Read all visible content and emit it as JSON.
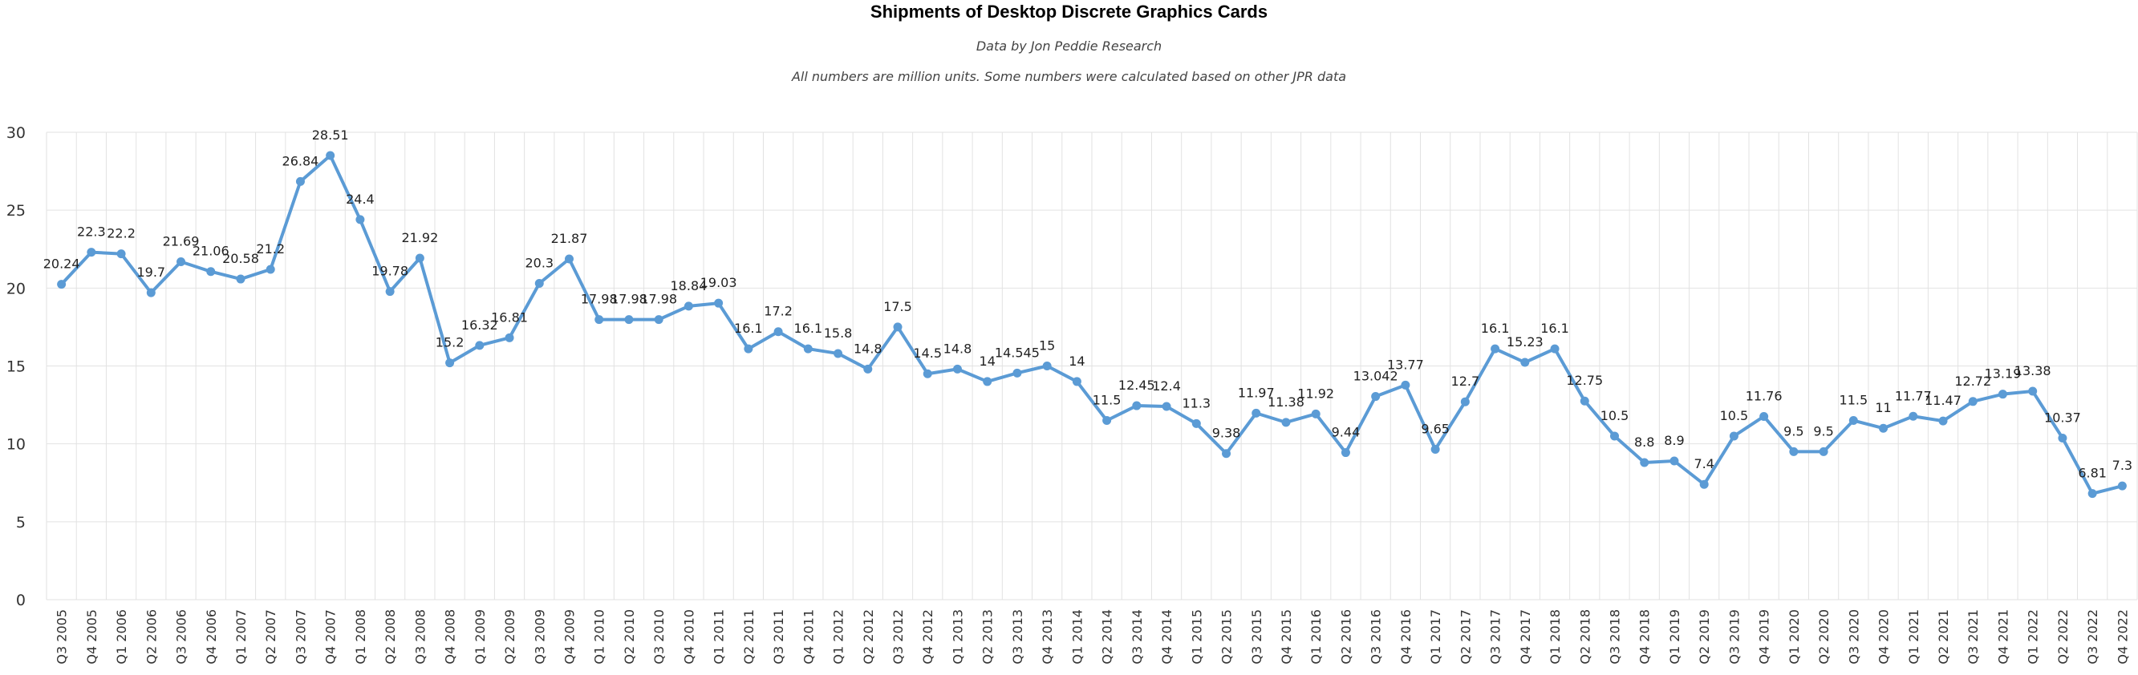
{
  "colors": {
    "line": "#5b9bd5",
    "grid": "#e2e2e2",
    "background": "#ffffff"
  },
  "chart_data": {
    "type": "line",
    "title": "Shipments of Desktop Discrete Graphics Cards",
    "subtitle": "Data by Jon Peddie Research",
    "note": "All numbers are million units. Some numbers were calculated based on other JPR data",
    "xlabel": "",
    "ylabel": "",
    "ylim": [
      0,
      30
    ],
    "yticks": [
      0,
      5,
      10,
      15,
      20,
      25,
      30
    ],
    "grid": true,
    "legend": "none",
    "categories": [
      "Q3 2005",
      "Q4 2005",
      "Q1 2006",
      "Q2 2006",
      "Q3 2006",
      "Q4 2006",
      "Q1 2007",
      "Q2 2007",
      "Q3 2007",
      "Q4 2007",
      "Q1 2008",
      "Q2 2008",
      "Q3 2008",
      "Q4 2008",
      "Q1 2009",
      "Q2 2009",
      "Q3 2009",
      "Q4 2009",
      "Q1 2010",
      "Q2 2010",
      "Q3 2010",
      "Q4 2010",
      "Q1 2011",
      "Q2 2011",
      "Q3 2011",
      "Q4 2011",
      "Q1 2012",
      "Q2 2012",
      "Q3 2012",
      "Q4 2012",
      "Q1 2013",
      "Q2 2013",
      "Q3 2013",
      "Q4 2013",
      "Q1 2014",
      "Q2 2014",
      "Q3 2014",
      "Q4 2014",
      "Q1 2015",
      "Q2 2015",
      "Q3 2015",
      "Q4 2015",
      "Q1 2016",
      "Q2 2016",
      "Q3 2016",
      "Q4 2016",
      "Q1 2017",
      "Q2 2017",
      "Q3 2017",
      "Q4 2017",
      "Q1 2018",
      "Q2 2018",
      "Q3 2018",
      "Q4 2018",
      "Q1 2019",
      "Q2 2019",
      "Q3 2019",
      "Q4 2019",
      "Q1 2020",
      "Q2 2020",
      "Q3 2020",
      "Q4 2020",
      "Q1 2021",
      "Q2 2021",
      "Q3 2021",
      "Q4 2021",
      "Q1 2022",
      "Q2 2022",
      "Q3 2022",
      "Q4 2022"
    ],
    "series": [
      {
        "values": [
          20.24,
          22.3,
          22.2,
          19.7,
          21.69,
          21.06,
          20.58,
          21.2,
          26.84,
          28.51,
          24.4,
          19.78,
          21.92,
          15.2,
          16.32,
          16.81,
          20.3,
          21.87,
          17.98,
          17.98,
          17.98,
          18.84,
          19.03,
          16.1,
          17.2,
          16.1,
          15.8,
          14.8,
          17.5,
          14.5,
          14.8,
          14,
          14.545,
          15,
          14,
          11.5,
          12.45,
          12.4,
          11.3,
          9.38,
          11.97,
          11.38,
          11.92,
          9.44,
          13.042,
          13.77,
          9.65,
          12.7,
          16.1,
          15.23,
          16.1,
          12.75,
          10.5,
          8.8,
          8.9,
          7.4,
          10.5,
          11.76,
          9.5,
          9.5,
          11.5,
          11,
          11.77,
          11.47,
          12.72,
          13.19,
          13.38,
          10.37,
          6.81,
          7.3
        ],
        "labels": [
          "20.24",
          "22.3",
          "22.2",
          "19.7",
          "21.69",
          "21.06",
          "20.58",
          "21.2",
          "26.84",
          "28.51",
          "24.4",
          "19.78",
          "21.92",
          "15.2",
          "16.32",
          "16.81",
          "20.3",
          "21.87",
          "17.98",
          "17.98",
          "17.98",
          "18.84",
          "19.03",
          "16.1",
          "17.2",
          "16.1",
          "15.8",
          "14.8",
          "17.5",
          "14.5",
          "14.8",
          "14",
          "14.545",
          "15",
          "14",
          "11.5",
          "12.45",
          "12.4",
          "11.3",
          "9.38",
          "11.97",
          "11.38",
          "11.92",
          "9.44",
          "13.042",
          "13.77",
          "9.65",
          "12.7",
          "16.1",
          "15.23",
          "16.1",
          "12.75",
          "10.5",
          "8.8",
          "8.9",
          "7.4",
          "10.5",
          "11.76",
          "9.5",
          "9.5",
          "11.5",
          "11",
          "11.77",
          "11.47",
          "12.72",
          "13.19",
          "13.38",
          "10.37",
          "6.81",
          "7.3"
        ]
      }
    ]
  }
}
